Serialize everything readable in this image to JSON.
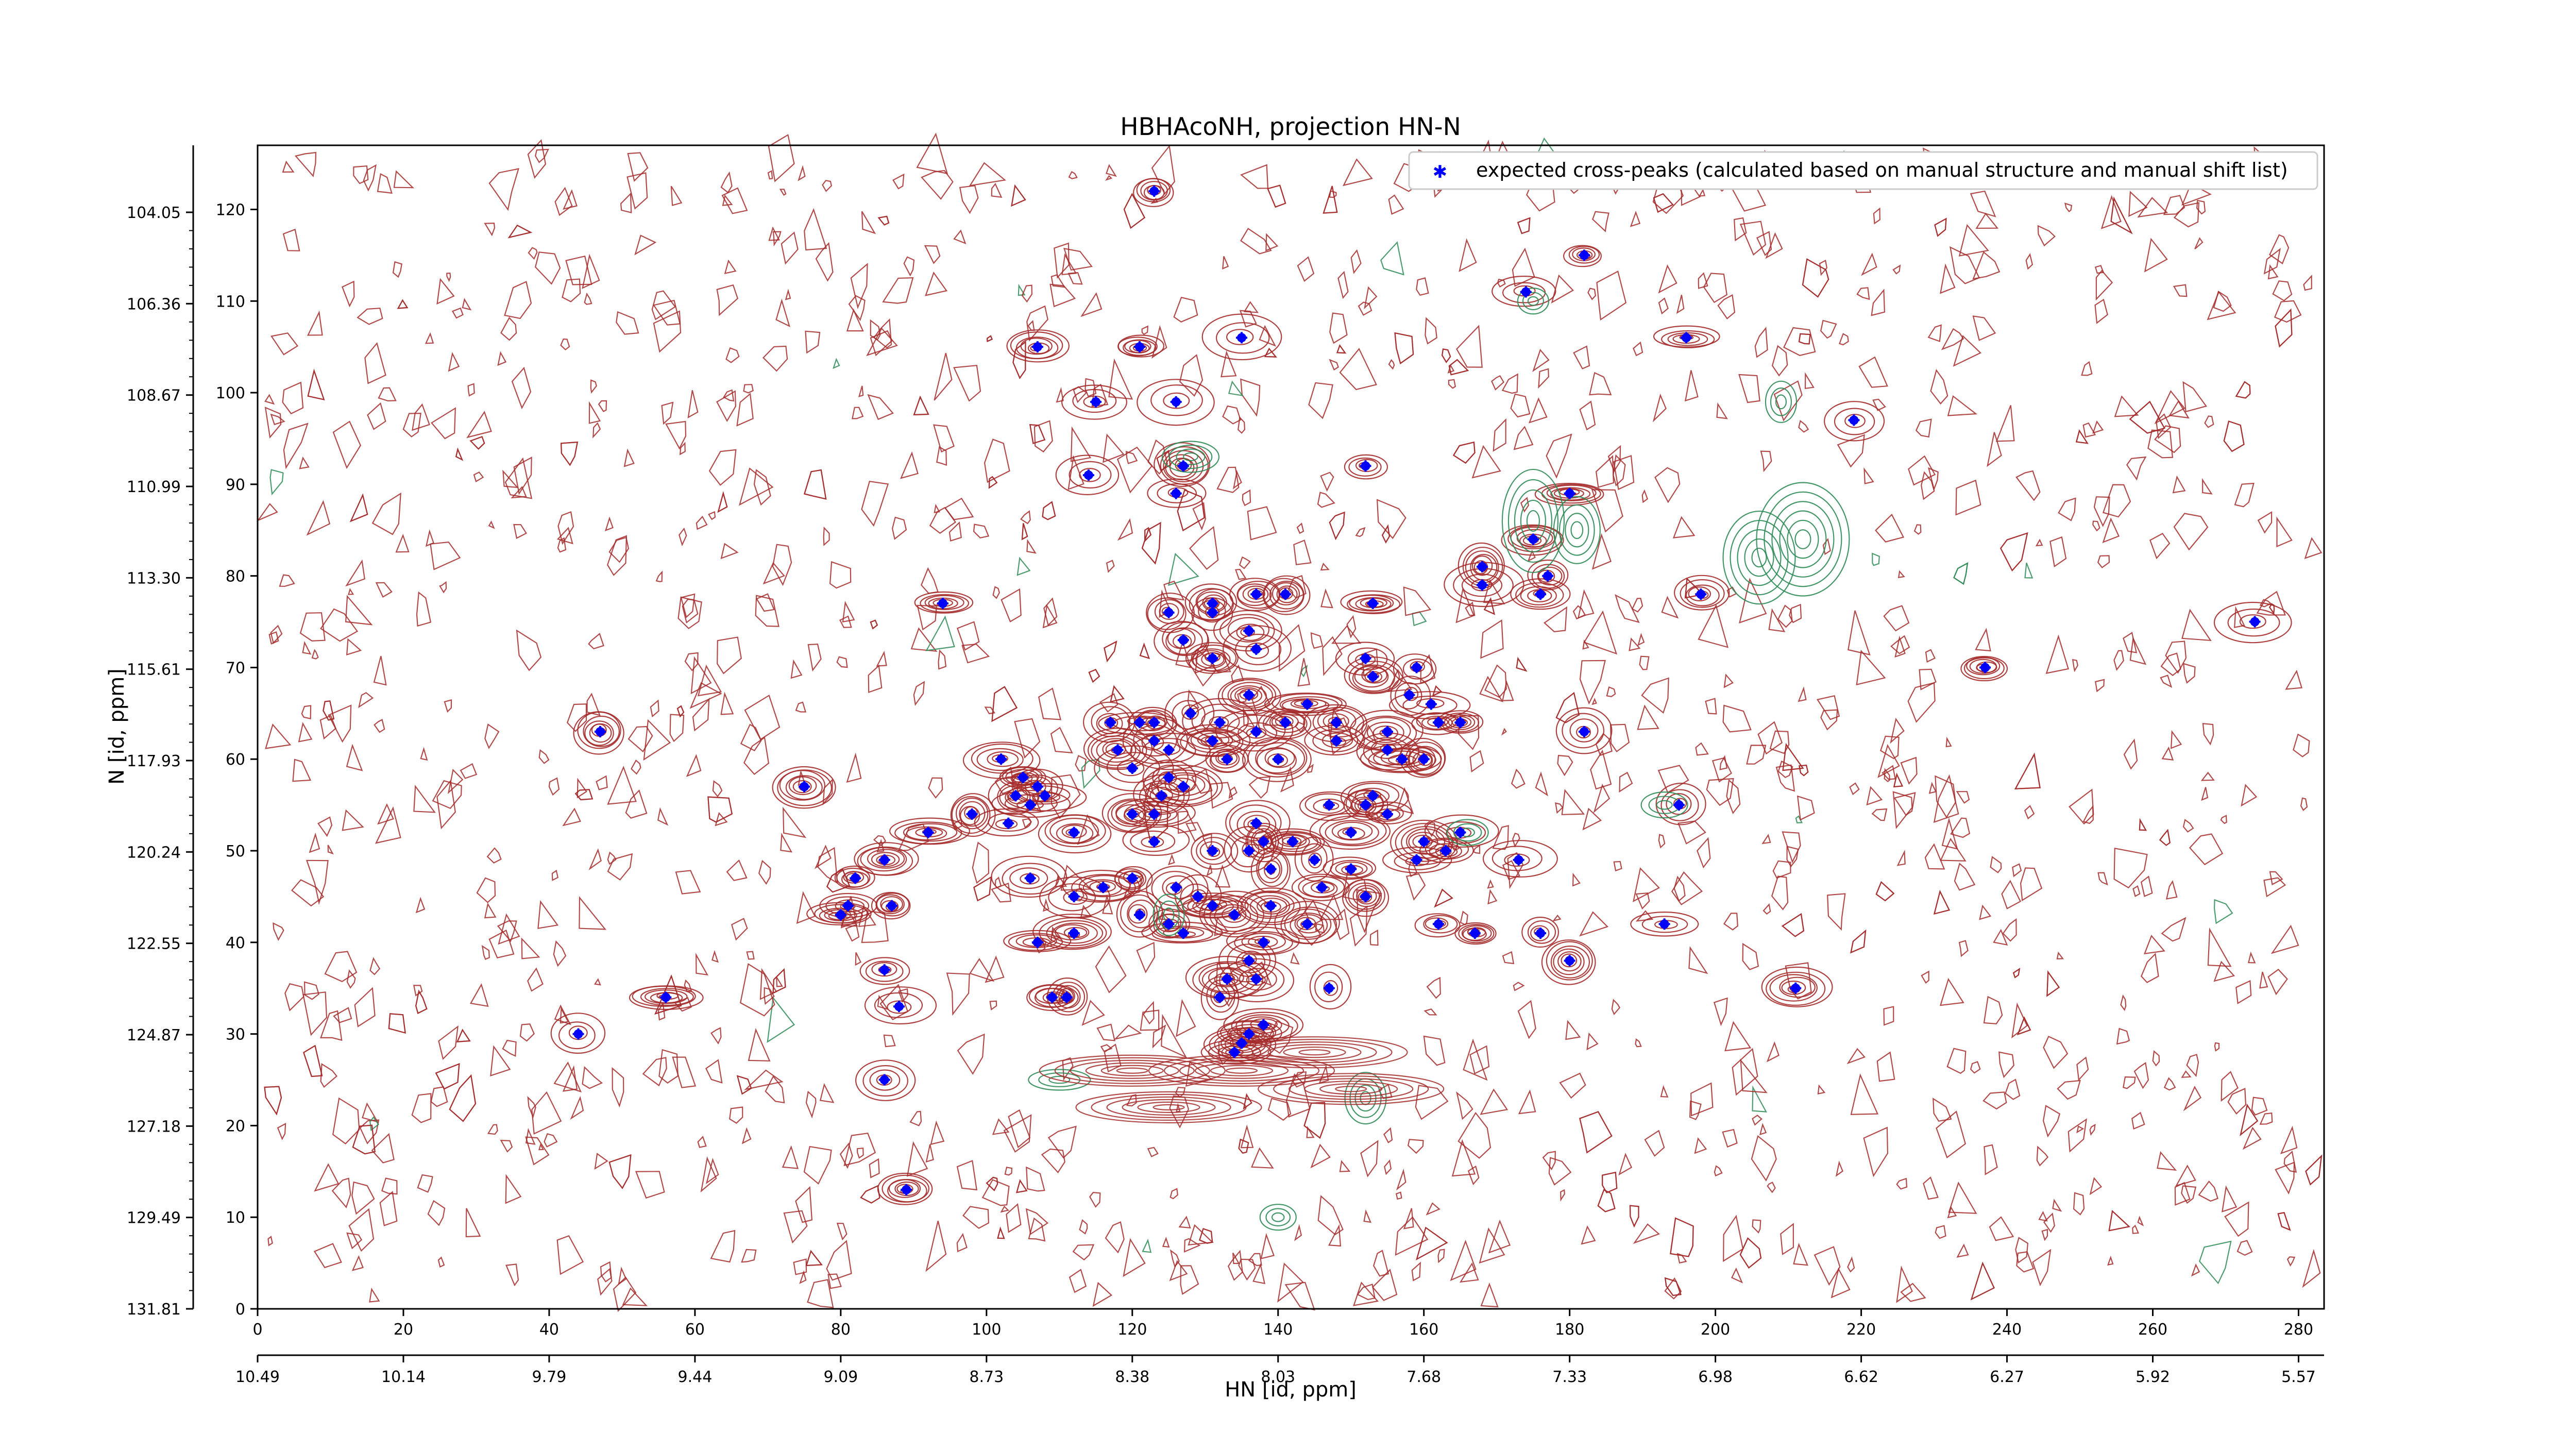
{
  "chart_data": {
    "type": "scatter",
    "title": "HBHAcoNH, projection HN-N",
    "xlabel": "HN [id, ppm]",
    "ylabel": "N [id, ppm]",
    "xlim": [
      0,
      283.5
    ],
    "ylim": [
      0,
      127
    ],
    "grid": false,
    "legend_position": "top-right",
    "x_ticks": [
      0,
      20,
      40,
      60,
      80,
      100,
      120,
      140,
      160,
      180,
      200,
      220,
      240,
      260,
      280
    ],
    "y_ticks": [
      0,
      10,
      20,
      30,
      40,
      50,
      60,
      70,
      80,
      90,
      100,
      110,
      120
    ],
    "x_ppm_ticks": [
      "10.49",
      "10.14",
      "9.79",
      "9.44",
      "9.09",
      "8.73",
      "8.38",
      "8.03",
      "7.68",
      "7.33",
      "6.98",
      "6.62",
      "6.27",
      "5.92",
      "5.57"
    ],
    "y_ppm_ticks": [
      "131.81",
      "129.49",
      "127.18",
      "124.87",
      "122.55",
      "120.24",
      "117.93",
      "115.61",
      "113.30",
      "110.99",
      "108.67",
      "106.36",
      "104.05"
    ],
    "series": [
      {
        "name": "expected cross-peaks (calculated based on manual structure and manual shift list)",
        "color": "#0000ff",
        "marker": "x",
        "points": [
          [
            123,
            122
          ],
          [
            182,
            115
          ],
          [
            174,
            111
          ],
          [
            107,
            105
          ],
          [
            121,
            105
          ],
          [
            135,
            106
          ],
          [
            196,
            106
          ],
          [
            115,
            99
          ],
          [
            126,
            99
          ],
          [
            219,
            97
          ],
          [
            114,
            91
          ],
          [
            127,
            92
          ],
          [
            126,
            89
          ],
          [
            152,
            92
          ],
          [
            180,
            89
          ],
          [
            168,
            81
          ],
          [
            175,
            84
          ],
          [
            177,
            80
          ],
          [
            168,
            79
          ],
          [
            176,
            78
          ],
          [
            198,
            78
          ],
          [
            94,
            77
          ],
          [
            125,
            76
          ],
          [
            131,
            77
          ],
          [
            137,
            78
          ],
          [
            141,
            78
          ],
          [
            131,
            76
          ],
          [
            136,
            74
          ],
          [
            153,
            77
          ],
          [
            274,
            75
          ],
          [
            127,
            73
          ],
          [
            131,
            71
          ],
          [
            137,
            72
          ],
          [
            152,
            71
          ],
          [
            159,
            70
          ],
          [
            153,
            69
          ],
          [
            237,
            70
          ],
          [
            158,
            67
          ],
          [
            161,
            66
          ],
          [
            162,
            64
          ],
          [
            165,
            64
          ],
          [
            47,
            63
          ],
          [
            136,
            67
          ],
          [
            144,
            66
          ],
          [
            128,
            65
          ],
          [
            132,
            64
          ],
          [
            137,
            63
          ],
          [
            141,
            64
          ],
          [
            148,
            64
          ],
          [
            155,
            63
          ],
          [
            131,
            62
          ],
          [
            117,
            64
          ],
          [
            121,
            64
          ],
          [
            123,
            64
          ],
          [
            123,
            62
          ],
          [
            118,
            61
          ],
          [
            133,
            60
          ],
          [
            140,
            60
          ],
          [
            148,
            62
          ],
          [
            125,
            61
          ],
          [
            155,
            61
          ],
          [
            157,
            60
          ],
          [
            160,
            60
          ],
          [
            182,
            63
          ],
          [
            102,
            60
          ],
          [
            120,
            59
          ],
          [
            125,
            58
          ],
          [
            105,
            58
          ],
          [
            107,
            57
          ],
          [
            124,
            56
          ],
          [
            127,
            57
          ],
          [
            75,
            57
          ],
          [
            104,
            56
          ],
          [
            108,
            56
          ],
          [
            106,
            55
          ],
          [
            98,
            54
          ],
          [
            103,
            53
          ],
          [
            120,
            54
          ],
          [
            123,
            54
          ],
          [
            147,
            55
          ],
          [
            152,
            55
          ],
          [
            155,
            54
          ],
          [
            153,
            56
          ],
          [
            150,
            52
          ],
          [
            137,
            53
          ],
          [
            138,
            51
          ],
          [
            92,
            52
          ],
          [
            112,
            52
          ],
          [
            123,
            51
          ],
          [
            131,
            50
          ],
          [
            136,
            50
          ],
          [
            142,
            51
          ],
          [
            145,
            49
          ],
          [
            150,
            48
          ],
          [
            160,
            51
          ],
          [
            163,
            50
          ],
          [
            165,
            52
          ],
          [
            195,
            55
          ],
          [
            86,
            49
          ],
          [
            82,
            47
          ],
          [
            106,
            47
          ],
          [
            112,
            45
          ],
          [
            116,
            46
          ],
          [
            120,
            47
          ],
          [
            87,
            44
          ],
          [
            80,
            43
          ],
          [
            81,
            44
          ],
          [
            121,
            43
          ],
          [
            125,
            42
          ],
          [
            126,
            46
          ],
          [
            129,
            45
          ],
          [
            131,
            44
          ],
          [
            139,
            44
          ],
          [
            146,
            46
          ],
          [
            152,
            45
          ],
          [
            159,
            49
          ],
          [
            173,
            49
          ],
          [
            139,
            48
          ],
          [
            134,
            43
          ],
          [
            138,
            40
          ],
          [
            144,
            42
          ],
          [
            162,
            42
          ],
          [
            167,
            41
          ],
          [
            176,
            41
          ],
          [
            193,
            42
          ],
          [
            107,
            40
          ],
          [
            112,
            41
          ],
          [
            127,
            41
          ],
          [
            136,
            38
          ],
          [
            137,
            36
          ],
          [
            86,
            37
          ],
          [
            133,
            36
          ],
          [
            180,
            38
          ],
          [
            56,
            34
          ],
          [
            88,
            33
          ],
          [
            109,
            34
          ],
          [
            111,
            34
          ],
          [
            132,
            34
          ],
          [
            147,
            35
          ],
          [
            211,
            35
          ],
          [
            44,
            30
          ],
          [
            138,
            31
          ],
          [
            136,
            30
          ],
          [
            135,
            29
          ],
          [
            134,
            28
          ],
          [
            86,
            25
          ],
          [
            89,
            13
          ]
        ]
      }
    ],
    "contour_colors": {
      "positive": "#a52a2a",
      "negative": "#2e8b57"
    }
  }
}
